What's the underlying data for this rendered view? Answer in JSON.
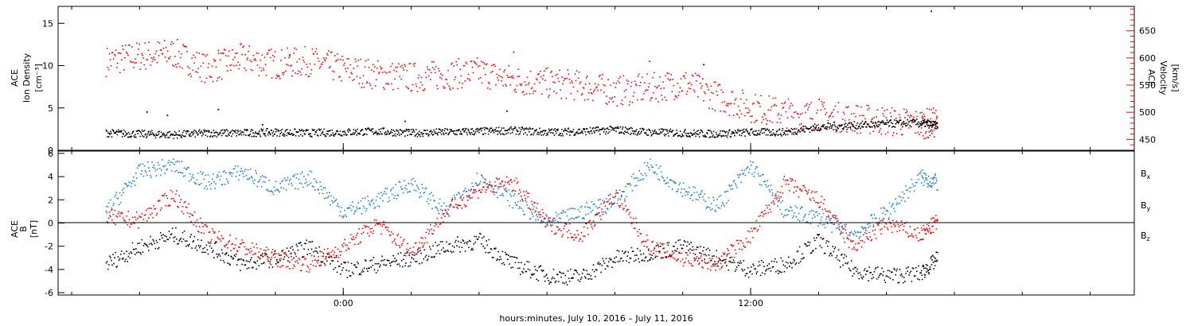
{
  "chart_data": [
    {
      "type": "scatter",
      "panel": "density-velocity",
      "ylabel": [
        "ACE",
        "Ion Density",
        "[cm⁻³]"
      ],
      "ylim": [
        0,
        17
      ],
      "yticks": [
        0,
        5,
        10,
        15
      ],
      "y2label": [
        "ACE",
        "Velocity",
        "[km/s]"
      ],
      "y2lim": [
        430,
        695
      ],
      "y2ticks": [
        450,
        500,
        550,
        600,
        650
      ],
      "series": [
        {
          "name": "Ion Density",
          "axis": "left",
          "color": "#000000",
          "points": [
            [
              -7.0,
              2.1
            ],
            [
              -6.0,
              2.0
            ],
            [
              -5.0,
              1.9
            ],
            [
              -4.0,
              2.1
            ],
            [
              -3.0,
              2.1
            ],
            [
              -2.0,
              2.2
            ],
            [
              -1.0,
              2.1
            ],
            [
              0.0,
              2.2
            ],
            [
              1.0,
              2.3
            ],
            [
              2.0,
              2.1
            ],
            [
              3.0,
              2.2
            ],
            [
              4.0,
              2.3
            ],
            [
              5.0,
              2.4
            ],
            [
              6.0,
              2.2
            ],
            [
              7.0,
              2.3
            ],
            [
              8.0,
              2.5
            ],
            [
              9.0,
              2.2
            ],
            [
              10.0,
              2.1
            ],
            [
              11.0,
              2.0
            ],
            [
              12.0,
              2.2
            ],
            [
              13.0,
              2.2
            ],
            [
              14.0,
              2.8
            ],
            [
              15.0,
              3.0
            ],
            [
              16.0,
              3.2
            ],
            [
              17.0,
              3.3
            ],
            [
              17.5,
              3.0
            ],
            [
              -5.8,
              4.6
            ],
            [
              -5.2,
              4.2
            ],
            [
              -3.7,
              4.9
            ],
            [
              -2.4,
              3.1
            ],
            [
              1.8,
              3.5
            ],
            [
              4.8,
              4.7
            ],
            [
              10.6,
              10.2
            ],
            [
              17.3,
              16.5
            ]
          ]
        },
        {
          "name": "Velocity",
          "axis": "right",
          "color": "#ff0000",
          "points": [
            [
              -7.0,
              595
            ],
            [
              -6.0,
              605
            ],
            [
              -5.0,
              610
            ],
            [
              -4.0,
              580
            ],
            [
              -3.0,
              600
            ],
            [
              -2.0,
              590
            ],
            [
              -1.0,
              595
            ],
            [
              0.0,
              580
            ],
            [
              1.0,
              570
            ],
            [
              2.0,
              565
            ],
            [
              3.0,
              570
            ],
            [
              4.0,
              575
            ],
            [
              5.0,
              560
            ],
            [
              6.0,
              555
            ],
            [
              7.0,
              550
            ],
            [
              8.0,
              540
            ],
            [
              9.0,
              545
            ],
            [
              10.0,
              555
            ],
            [
              11.0,
              530
            ],
            [
              12.0,
              510
            ],
            [
              13.0,
              500
            ],
            [
              14.0,
              495
            ],
            [
              15.0,
              490
            ],
            [
              16.0,
              485
            ],
            [
              17.0,
              480
            ],
            [
              17.5,
              482
            ],
            [
              -3.7,
              615
            ],
            [
              -1.6,
              605
            ],
            [
              5.0,
              612
            ],
            [
              9.0,
              595
            ],
            [
              14.0,
              525
            ],
            [
              17.2,
              455
            ]
          ]
        }
      ]
    },
    {
      "type": "scatter",
      "panel": "magnetic-field",
      "ylabel": [
        "ACE",
        "B",
        "[nT]"
      ],
      "ylim": [
        -6.2,
        6.2
      ],
      "yticks": [
        -6,
        -4,
        -2,
        0,
        2,
        4,
        6
      ],
      "zero_line": true,
      "series": [
        {
          "name": "Bx",
          "color": "#000000",
          "points": [
            [
              -7.0,
              -3.5
            ],
            [
              -6.0,
              -2.0
            ],
            [
              -5.0,
              -1.0
            ],
            [
              -4.0,
              -2.0
            ],
            [
              -3.0,
              -3.5
            ],
            [
              -2.0,
              -3.0
            ],
            [
              -1.0,
              -2.0
            ],
            [
              0.0,
              -4.0
            ],
            [
              1.0,
              -3.5
            ],
            [
              2.0,
              -3.0
            ],
            [
              3.0,
              -2.0
            ],
            [
              4.0,
              -1.5
            ],
            [
              5.0,
              -3.5
            ],
            [
              6.0,
              -4.5
            ],
            [
              7.0,
              -4.6
            ],
            [
              8.0,
              -3.0
            ],
            [
              9.0,
              -2.5
            ],
            [
              10.0,
              -2.0
            ],
            [
              11.0,
              -3.0
            ],
            [
              12.0,
              -4.0
            ],
            [
              13.0,
              -3.5
            ],
            [
              14.0,
              -1.5
            ],
            [
              15.0,
              -4.0
            ],
            [
              16.0,
              -4.5
            ],
            [
              17.0,
              -4.3
            ],
            [
              17.5,
              -3.0
            ]
          ]
        },
        {
          "name": "By",
          "color": "#1a7fd9",
          "points": [
            [
              -7.0,
              1.0
            ],
            [
              -6.0,
              4.5
            ],
            [
              -5.0,
              5.0
            ],
            [
              -4.0,
              3.5
            ],
            [
              -3.0,
              4.5
            ],
            [
              -2.0,
              3.0
            ],
            [
              -1.0,
              4.0
            ],
            [
              0.0,
              1.0
            ],
            [
              1.0,
              2.0
            ],
            [
              2.0,
              3.5
            ],
            [
              3.0,
              1.0
            ],
            [
              4.0,
              4.0
            ],
            [
              5.0,
              2.0
            ],
            [
              6.0,
              0.0
            ],
            [
              7.0,
              1.0
            ],
            [
              8.0,
              2.0
            ],
            [
              9.0,
              5.0
            ],
            [
              10.0,
              3.0
            ],
            [
              11.0,
              1.5
            ],
            [
              12.0,
              5.0
            ],
            [
              13.0,
              1.0
            ],
            [
              14.0,
              0.5
            ],
            [
              15.0,
              -1.0
            ],
            [
              16.0,
              1.0
            ],
            [
              17.0,
              4.0
            ],
            [
              17.5,
              3.5
            ]
          ]
        },
        {
          "name": "Bz",
          "color": "#ff0000",
          "points": [
            [
              -7.0,
              0.5
            ],
            [
              -6.0,
              0.3
            ],
            [
              -5.0,
              2.5
            ],
            [
              -4.0,
              -1.0
            ],
            [
              -3.0,
              -2.0
            ],
            [
              -2.0,
              -3.0
            ],
            [
              -1.0,
              -3.5
            ],
            [
              0.0,
              -2.0
            ],
            [
              1.0,
              0.0
            ],
            [
              2.0,
              -2.5
            ],
            [
              3.0,
              1.0
            ],
            [
              4.0,
              3.0
            ],
            [
              5.0,
              3.5
            ],
            [
              6.0,
              0.0
            ],
            [
              7.0,
              -1.0
            ],
            [
              8.0,
              2.5
            ],
            [
              9.0,
              -2.0
            ],
            [
              10.0,
              -3.0
            ],
            [
              11.0,
              -3.5
            ],
            [
              12.0,
              -1.0
            ],
            [
              13.0,
              3.5
            ],
            [
              14.0,
              2.0
            ],
            [
              15.0,
              -2.0
            ],
            [
              16.0,
              0.0
            ],
            [
              17.0,
              -1.0
            ],
            [
              17.5,
              0.2
            ]
          ]
        }
      ]
    }
  ],
  "xaxis": {
    "xlim": [
      -8.4,
      23.3
    ],
    "ticks": [
      {
        "x": 0,
        "label": "0:00"
      },
      {
        "x": 12,
        "label": "12:00"
      }
    ],
    "minor_step": 2,
    "xlabel": "hours:minutes, July 10, 2016 – July 11, 2016"
  },
  "colors": {
    "velocity_axis": "#ff0000",
    "by": "#1a7fd9"
  }
}
